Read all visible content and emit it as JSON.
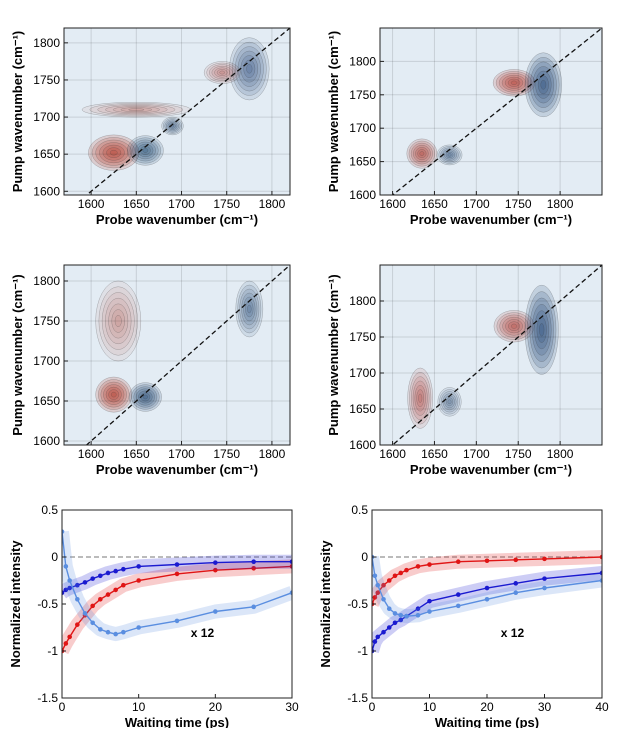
{
  "chart_data": [
    {
      "type": "contour",
      "xlabel": "Probe wavenumber (cm⁻¹)",
      "ylabel": "Pump wavenumber (cm⁻¹)",
      "xlim": [
        1570,
        1820
      ],
      "ylim": [
        1595,
        1820
      ],
      "xticks": [
        1600,
        1650,
        1700,
        1750,
        1800
      ],
      "yticks": [
        1600,
        1650,
        1700,
        1750,
        1800
      ],
      "negative_color": "#b22a1a",
      "positive_color": "#173f6e",
      "background": "#e3ecf4",
      "peaks": [
        {
          "x": 1625,
          "y": 1652,
          "sx": 28,
          "sy": 24,
          "amp": -1
        },
        {
          "x": 1660,
          "y": 1655,
          "sx": 20,
          "sy": 20,
          "amp": 0.8
        },
        {
          "x": 1690,
          "y": 1688,
          "sx": 12,
          "sy": 12,
          "amp": 0.5
        },
        {
          "x": 1775,
          "y": 1765,
          "sx": 22,
          "sy": 42,
          "amp": 0.6
        },
        {
          "x": 1745,
          "y": 1760,
          "sx": 20,
          "sy": 15,
          "amp": -0.3
        },
        {
          "x": 1650,
          "y": 1710,
          "sx": 60,
          "sy": 10,
          "amp": -0.2
        }
      ]
    },
    {
      "type": "contour",
      "xlabel": "Probe wavenumber (cm⁻¹)",
      "ylabel": "Pump wavenumber (cm⁻¹)",
      "xlim": [
        1585,
        1850
      ],
      "ylim": [
        1600,
        1850
      ],
      "xticks": [
        1600,
        1650,
        1700,
        1750,
        1800
      ],
      "yticks": [
        1600,
        1650,
        1700,
        1750,
        1800
      ],
      "negative_color": "#b22a1a",
      "positive_color": "#173f6e",
      "background": "#e3ecf4",
      "peaks": [
        {
          "x": 1635,
          "y": 1662,
          "sx": 18,
          "sy": 22,
          "amp": -0.8
        },
        {
          "x": 1668,
          "y": 1660,
          "sx": 15,
          "sy": 15,
          "amp": 0.5
        },
        {
          "x": 1745,
          "y": 1768,
          "sx": 25,
          "sy": 20,
          "amp": -0.9
        },
        {
          "x": 1780,
          "y": 1765,
          "sx": 22,
          "sy": 48,
          "amp": 1
        }
      ]
    },
    {
      "type": "contour",
      "xlabel": "Probe wavenumber (cm⁻¹)",
      "ylabel": "Pump wavenumber (cm⁻¹)",
      "xlim": [
        1570,
        1820
      ],
      "ylim": [
        1595,
        1820
      ],
      "xticks": [
        1600,
        1650,
        1700,
        1750,
        1800
      ],
      "yticks": [
        1600,
        1650,
        1700,
        1750,
        1800
      ],
      "negative_color": "#b22a1a",
      "positive_color": "#173f6e",
      "background": "#e3ecf4",
      "peaks": [
        {
          "x": 1630,
          "y": 1750,
          "sx": 25,
          "sy": 50,
          "amp": -0.2
        },
        {
          "x": 1625,
          "y": 1658,
          "sx": 20,
          "sy": 22,
          "amp": -1
        },
        {
          "x": 1660,
          "y": 1655,
          "sx": 18,
          "sy": 18,
          "amp": 0.9
        },
        {
          "x": 1775,
          "y": 1765,
          "sx": 15,
          "sy": 35,
          "amp": 0.5
        }
      ]
    },
    {
      "type": "contour",
      "xlabel": "Probe wavenumber (cm⁻¹)",
      "ylabel": "Pump wavenumber (cm⁻¹)",
      "xlim": [
        1585,
        1850
      ],
      "ylim": [
        1600,
        1850
      ],
      "xticks": [
        1600,
        1650,
        1700,
        1750,
        1800
      ],
      "yticks": [
        1600,
        1650,
        1700,
        1750,
        1800
      ],
      "negative_color": "#b22a1a",
      "positive_color": "#173f6e",
      "background": "#e3ecf4",
      "peaks": [
        {
          "x": 1633,
          "y": 1665,
          "sx": 15,
          "sy": 42,
          "amp": -0.5
        },
        {
          "x": 1668,
          "y": 1660,
          "sx": 14,
          "sy": 20,
          "amp": 0.4
        },
        {
          "x": 1745,
          "y": 1765,
          "sx": 24,
          "sy": 22,
          "amp": -0.7
        },
        {
          "x": 1778,
          "y": 1760,
          "sx": 20,
          "sy": 62,
          "amp": 1
        }
      ]
    },
    {
      "type": "line",
      "xlabel": "Waiting time (ps)",
      "ylabel": "Normalized intensity",
      "annotation": "x 12",
      "xlim": [
        0,
        30
      ],
      "ylim": [
        -1.5,
        0.5
      ],
      "xticks": [
        0,
        10,
        20,
        30
      ],
      "yticks": [
        -1.5,
        -1,
        -0.5,
        0,
        0.5
      ],
      "x": [
        0,
        0.5,
        1,
        2,
        3,
        4,
        5,
        6,
        7,
        8,
        10,
        15,
        20,
        25,
        30
      ],
      "series": [
        {
          "color": "#e01515",
          "values": [
            -1,
            -0.92,
            -0.85,
            -0.72,
            -0.62,
            -0.52,
            -0.45,
            -0.4,
            -0.35,
            -0.3,
            -0.25,
            -0.18,
            -0.14,
            -0.12,
            -0.1
          ]
        },
        {
          "color": "#1a1ad0",
          "values": [
            -0.38,
            -0.35,
            -0.33,
            -0.3,
            -0.27,
            -0.23,
            -0.2,
            -0.17,
            -0.15,
            -0.13,
            -0.1,
            -0.08,
            -0.06,
            -0.05,
            -0.05
          ]
        },
        {
          "color": "#5a8ee0",
          "values": [
            0.27,
            -0.1,
            -0.25,
            -0.45,
            -0.6,
            -0.7,
            -0.77,
            -0.8,
            -0.82,
            -0.8,
            -0.75,
            -0.68,
            -0.58,
            -0.53,
            -0.38
          ]
        }
      ]
    },
    {
      "type": "line",
      "xlabel": "Waiting time (ps)",
      "ylabel": "Normalized intensity",
      "annotation": "x 12",
      "xlim": [
        0,
        40
      ],
      "ylim": [
        -1.5,
        0.5
      ],
      "xticks": [
        0,
        10,
        20,
        30,
        40
      ],
      "yticks": [
        -1.5,
        -1,
        -0.5,
        0,
        0.5
      ],
      "x": [
        0,
        0.5,
        1,
        2,
        3,
        4,
        5,
        6,
        8,
        10,
        15,
        20,
        25,
        30,
        40
      ],
      "series": [
        {
          "color": "#e01515",
          "values": [
            -0.5,
            -0.43,
            -0.38,
            -0.3,
            -0.25,
            -0.2,
            -0.17,
            -0.14,
            -0.1,
            -0.08,
            -0.05,
            -0.04,
            -0.03,
            -0.02,
            0
          ]
        },
        {
          "color": "#1a1ad0",
          "values": [
            -1,
            -0.9,
            -0.85,
            -0.8,
            -0.75,
            -0.7,
            -0.67,
            -0.63,
            -0.55,
            -0.47,
            -0.4,
            -0.33,
            -0.28,
            -0.23,
            -0.17
          ]
        },
        {
          "color": "#5a8ee0",
          "values": [
            0,
            -0.2,
            -0.3,
            -0.45,
            -0.55,
            -0.6,
            -0.62,
            -0.63,
            -0.62,
            -0.58,
            -0.52,
            -0.45,
            -0.38,
            -0.33,
            -0.25
          ]
        }
      ]
    }
  ]
}
